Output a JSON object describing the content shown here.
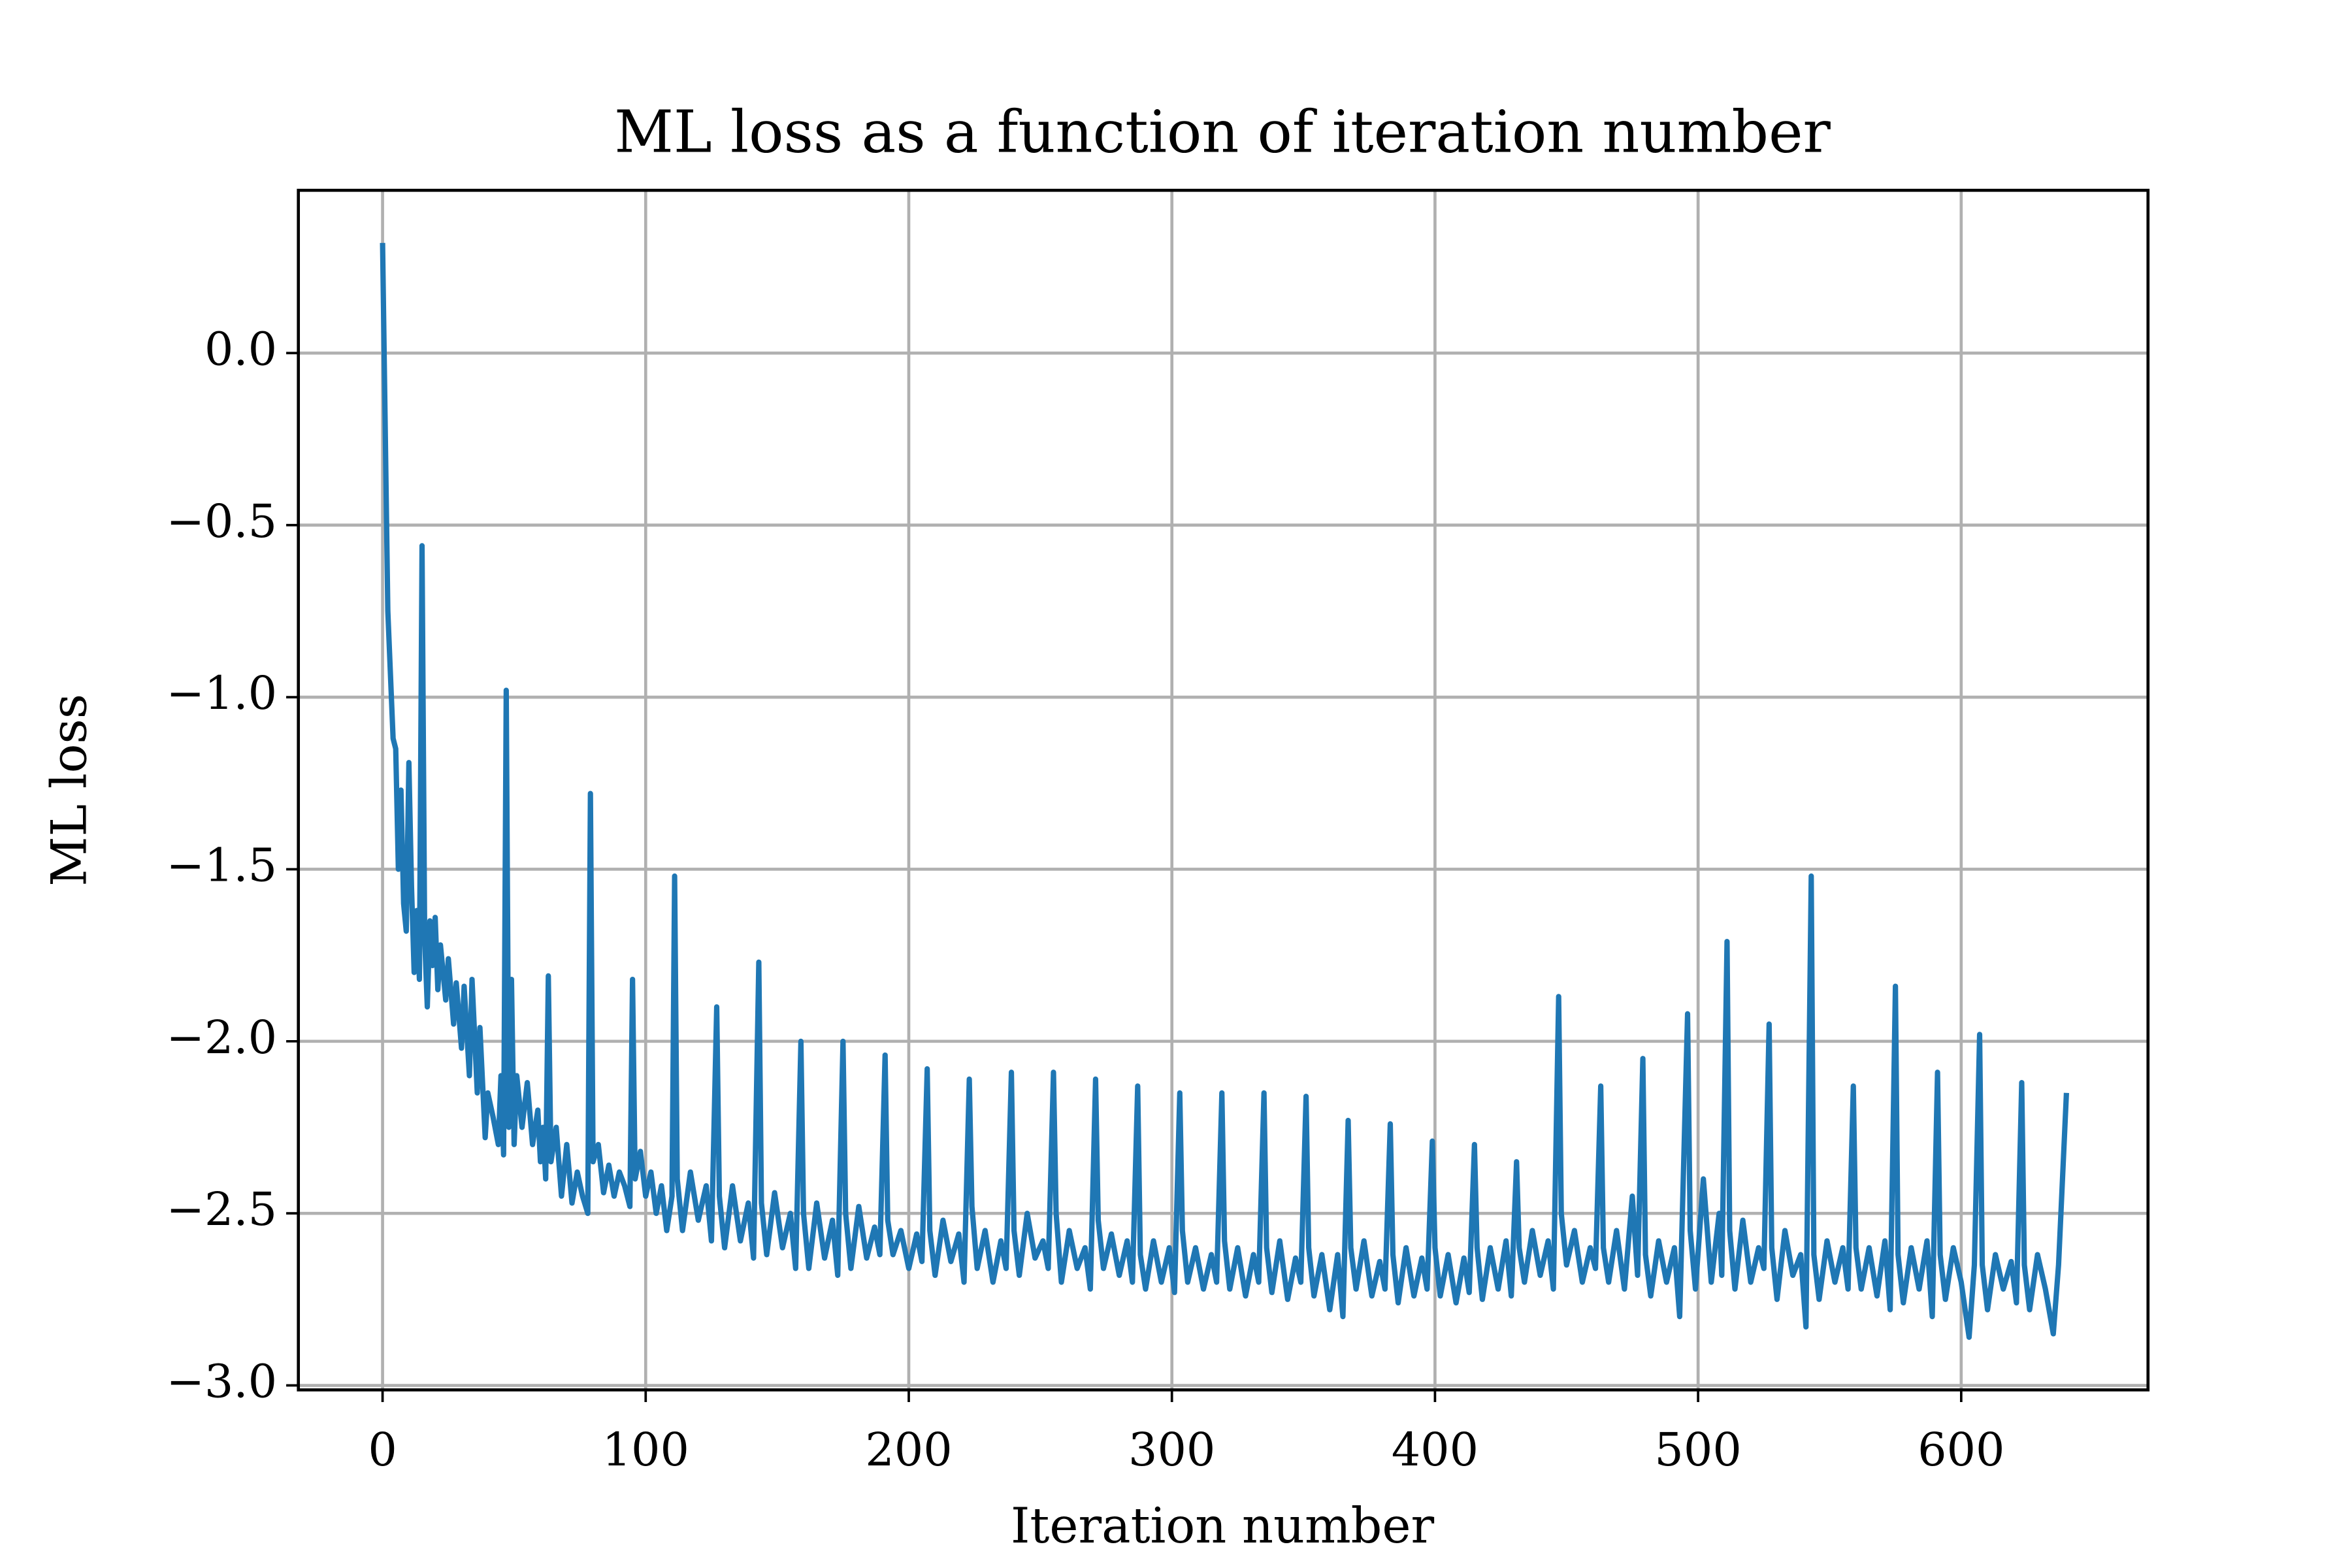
{
  "chart_data": {
    "type": "line",
    "title": "ML loss as a function of iteration number",
    "x_label": "Iteration number",
    "y_label": "ML loss",
    "color": "#1f77b4",
    "grid": true,
    "xlim": [
      -32,
      671
    ],
    "ylim": [
      -3.013,
      0.473
    ],
    "xticks": [
      0,
      100,
      200,
      300,
      400,
      500,
      600
    ],
    "yticks": [
      {
        "value": -3.0,
        "label": "−3.0"
      },
      {
        "value": -2.5,
        "label": "−2.5"
      },
      {
        "value": -2.0,
        "label": "−2.0"
      },
      {
        "value": -1.5,
        "label": "−1.5"
      },
      {
        "value": -1.0,
        "label": "−1.0"
      },
      {
        "value": -0.5,
        "label": "−0.5"
      },
      {
        "value": 0.0,
        "label": "0.0"
      }
    ],
    "x": [
      0,
      2,
      4,
      5,
      6,
      7,
      8,
      9,
      10,
      11,
      12,
      13,
      14,
      15,
      16,
      17,
      18,
      19,
      20,
      21,
      22,
      24,
      25,
      27,
      28,
      30,
      31,
      33,
      34,
      36,
      37,
      39,
      40,
      42,
      44,
      45,
      46,
      47,
      48,
      49,
      50,
      51,
      53,
      55,
      57,
      59,
      60,
      61,
      62,
      63,
      64,
      66,
      68,
      70,
      72,
      74,
      76,
      78,
      79,
      80,
      82,
      84,
      86,
      88,
      90,
      92,
      94,
      95,
      96,
      98,
      100,
      102,
      104,
      106,
      108,
      110,
      111,
      112,
      114,
      117,
      120,
      123,
      125,
      127,
      128,
      130,
      133,
      136,
      139,
      141,
      143,
      144,
      146,
      149,
      152,
      155,
      157,
      159,
      160,
      162,
      165,
      168,
      171,
      173,
      175,
      176,
      178,
      181,
      184,
      187,
      189,
      191,
      192,
      194,
      197,
      200,
      203,
      205,
      207,
      208,
      210,
      213,
      216,
      219,
      221,
      223,
      224,
      226,
      229,
      232,
      235,
      237,
      239,
      240,
      242,
      245,
      248,
      251,
      253,
      255,
      256,
      258,
      261,
      264,
      267,
      269,
      271,
      272,
      274,
      277,
      280,
      283,
      285,
      287,
      288,
      290,
      293,
      296,
      299,
      301,
      303,
      304,
      306,
      309,
      312,
      315,
      317,
      319,
      320,
      322,
      325,
      328,
      331,
      333,
      335,
      336,
      338,
      341,
      344,
      347,
      349,
      351,
      352,
      354,
      357,
      360,
      363,
      365,
      367,
      368,
      370,
      373,
      376,
      379,
      381,
      383,
      384,
      386,
      389,
      392,
      395,
      397,
      399,
      400,
      402,
      405,
      408,
      411,
      413,
      415,
      416,
      418,
      421,
      424,
      427,
      429,
      431,
      432,
      434,
      437,
      440,
      443,
      445,
      447,
      448,
      450,
      453,
      456,
      459,
      461,
      463,
      464,
      466,
      469,
      472,
      475,
      477,
      479,
      480,
      482,
      485,
      488,
      491,
      493,
      496,
      497,
      499,
      502,
      505,
      508,
      509,
      511,
      512,
      514,
      517,
      520,
      523,
      525,
      527,
      528,
      530,
      533,
      536,
      539,
      541,
      543,
      544,
      546,
      549,
      552,
      555,
      557,
      559,
      560,
      562,
      565,
      568,
      571,
      573,
      575,
      576,
      578,
      581,
      584,
      587,
      589,
      591,
      592,
      594,
      597,
      600,
      603,
      605,
      607,
      608,
      610,
      613,
      616,
      619,
      621,
      623,
      624,
      626,
      629,
      632,
      635,
      637,
      640
    ],
    "values": [
      0.32,
      -0.75,
      -1.12,
      -1.15,
      -1.5,
      -1.27,
      -1.6,
      -1.68,
      -1.19,
      -1.55,
      -1.8,
      -1.62,
      -1.82,
      -0.56,
      -1.7,
      -1.9,
      -1.65,
      -1.78,
      -1.64,
      -1.85,
      -1.72,
      -1.88,
      -1.76,
      -1.95,
      -1.83,
      -2.02,
      -1.84,
      -2.1,
      -1.82,
      -2.15,
      -1.96,
      -2.28,
      -2.15,
      -2.22,
      -2.3,
      -2.1,
      -2.33,
      -0.98,
      -2.25,
      -1.82,
      -2.3,
      -2.1,
      -2.25,
      -2.12,
      -2.3,
      -2.2,
      -2.35,
      -2.25,
      -2.4,
      -1.81,
      -2.35,
      -2.25,
      -2.45,
      -2.3,
      -2.47,
      -2.38,
      -2.45,
      -2.5,
      -1.28,
      -2.35,
      -2.3,
      -2.44,
      -2.36,
      -2.45,
      -2.38,
      -2.42,
      -2.48,
      -1.82,
      -2.4,
      -2.32,
      -2.45,
      -2.38,
      -2.5,
      -2.42,
      -2.55,
      -2.45,
      -1.52,
      -2.4,
      -2.55,
      -2.38,
      -2.52,
      -2.42,
      -2.58,
      -1.9,
      -2.45,
      -2.6,
      -2.42,
      -2.58,
      -2.47,
      -2.63,
      -1.77,
      -2.47,
      -2.62,
      -2.44,
      -2.6,
      -2.5,
      -2.66,
      -2.0,
      -2.5,
      -2.66,
      -2.47,
      -2.63,
      -2.52,
      -2.68,
      -2.0,
      -2.5,
      -2.66,
      -2.48,
      -2.63,
      -2.54,
      -2.62,
      -2.04,
      -2.52,
      -2.62,
      -2.55,
      -2.66,
      -2.56,
      -2.64,
      -2.08,
      -2.55,
      -2.68,
      -2.52,
      -2.64,
      -2.56,
      -2.7,
      -2.11,
      -2.48,
      -2.66,
      -2.55,
      -2.7,
      -2.58,
      -2.66,
      -2.09,
      -2.55,
      -2.68,
      -2.5,
      -2.63,
      -2.58,
      -2.66,
      -2.09,
      -2.5,
      -2.7,
      -2.55,
      -2.66,
      -2.6,
      -2.72,
      -2.11,
      -2.52,
      -2.66,
      -2.56,
      -2.68,
      -2.58,
      -2.7,
      -2.13,
      -2.62,
      -2.72,
      -2.58,
      -2.7,
      -2.6,
      -2.73,
      -2.15,
      -2.55,
      -2.7,
      -2.6,
      -2.72,
      -2.62,
      -2.7,
      -2.15,
      -2.58,
      -2.72,
      -2.6,
      -2.74,
      -2.62,
      -2.7,
      -2.15,
      -2.6,
      -2.73,
      -2.58,
      -2.75,
      -2.63,
      -2.7,
      -2.16,
      -2.6,
      -2.74,
      -2.62,
      -2.78,
      -2.62,
      -2.8,
      -2.23,
      -2.6,
      -2.72,
      -2.58,
      -2.74,
      -2.64,
      -2.72,
      -2.24,
      -2.62,
      -2.76,
      -2.6,
      -2.74,
      -2.63,
      -2.72,
      -2.29,
      -2.6,
      -2.74,
      -2.62,
      -2.76,
      -2.63,
      -2.73,
      -2.3,
      -2.6,
      -2.75,
      -2.6,
      -2.72,
      -2.58,
      -2.74,
      -2.35,
      -2.6,
      -2.7,
      -2.55,
      -2.68,
      -2.58,
      -2.72,
      -1.87,
      -2.5,
      -2.65,
      -2.55,
      -2.7,
      -2.6,
      -2.66,
      -2.13,
      -2.6,
      -2.7,
      -2.55,
      -2.72,
      -2.45,
      -2.68,
      -2.05,
      -2.62,
      -2.74,
      -2.58,
      -2.7,
      -2.6,
      -2.8,
      -1.92,
      -2.55,
      -2.72,
      -2.4,
      -2.7,
      -2.5,
      -2.68,
      -1.71,
      -2.55,
      -2.72,
      -2.52,
      -2.7,
      -2.6,
      -2.66,
      -1.95,
      -2.6,
      -2.75,
      -2.55,
      -2.68,
      -2.62,
      -2.83,
      -1.52,
      -2.62,
      -2.75,
      -2.58,
      -2.7,
      -2.6,
      -2.72,
      -2.13,
      -2.6,
      -2.72,
      -2.6,
      -2.74,
      -2.58,
      -2.78,
      -1.84,
      -2.62,
      -2.76,
      -2.6,
      -2.72,
      -2.58,
      -2.8,
      -2.09,
      -2.62,
      -2.75,
      -2.6,
      -2.7,
      -2.86,
      -2.65,
      -1.98,
      -2.65,
      -2.78,
      -2.62,
      -2.72,
      -2.64,
      -2.76,
      -2.12,
      -2.65,
      -2.78,
      -2.62,
      -2.72,
      -2.85,
      -2.65,
      -2.15
    ]
  }
}
